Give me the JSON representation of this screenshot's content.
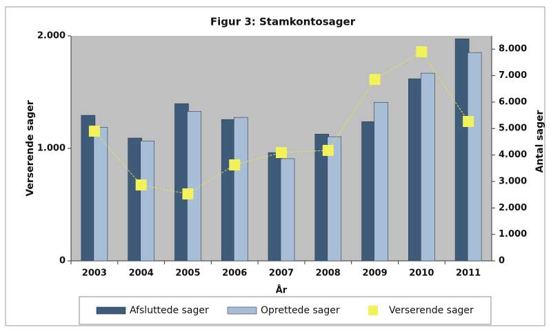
{
  "chart_data": {
    "type": "bar",
    "title": "Figur 3: Stamkontosager",
    "xlabel": "År",
    "ylabel": "Verserende sager",
    "y2label": "Antal sager",
    "categories": [
      "2003",
      "2004",
      "2005",
      "2006",
      "2007",
      "2008",
      "2009",
      "2010",
      "2011"
    ],
    "series": [
      {
        "name": "Afsluttede sager",
        "color": "#3e5b7a",
        "axis": "y2",
        "values": [
          5500,
          4640,
          5940,
          5340,
          4090,
          4790,
          5260,
          6880,
          8390
        ]
      },
      {
        "name": "Oprettede sager",
        "color": "#a8bed6",
        "axis": "y2",
        "values": [
          5050,
          4530,
          5650,
          5420,
          3860,
          4690,
          5990,
          7090,
          7870
        ]
      },
      {
        "name": "Verserende sager",
        "color": "#f2f25a",
        "type": "line",
        "values": [
          1153,
          675,
          595,
          853,
          963,
          982,
          1613,
          1859,
          1239
        ]
      }
    ],
    "ylim": [
      0,
      2000
    ],
    "yticks": [
      0,
      {
        "value": 1000,
        "label": "1.000"
      },
      {
        "value": 2000,
        "label": "2.000"
      }
    ],
    "y2lim": [
      0,
      8500
    ],
    "y2ticks": [
      0,
      {
        "value": 1000,
        "label": "1.000"
      },
      {
        "value": 2000,
        "label": "2.000"
      },
      {
        "value": 3000,
        "label": "3.000"
      },
      {
        "value": 4000,
        "label": "4.000"
      },
      {
        "value": 5000,
        "label": "5.000"
      },
      {
        "value": 6000,
        "label": "6.000"
      },
      {
        "value": 7000,
        "label": "7.000"
      },
      {
        "value": 8000,
        "label": "8.000"
      }
    ],
    "grid": false,
    "legend": "bottom"
  }
}
